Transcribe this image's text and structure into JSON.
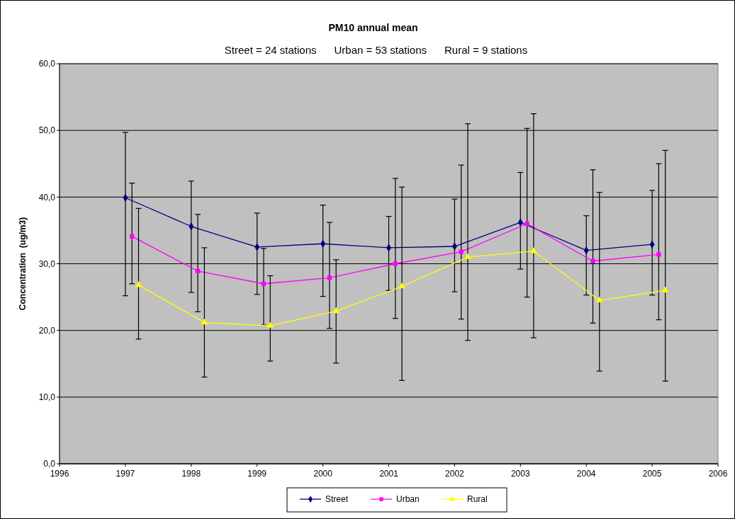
{
  "chart_data": {
    "type": "line",
    "title": "PM10 annual mean",
    "subtitle": "Street = 24 stations      Urban = 53 stations      Rural = 9 stations",
    "ylabel": "Concentration  (ug/m3)",
    "xlim": [
      1996,
      2006
    ],
    "xticks": [
      1996,
      1997,
      1998,
      1999,
      2000,
      2001,
      2002,
      2003,
      2004,
      2005,
      2006
    ],
    "ylim": [
      0,
      60
    ],
    "yticks": [
      {
        "value": 0,
        "label": "0,0"
      },
      {
        "value": 10,
        "label": "10,0"
      },
      {
        "value": 20,
        "label": "20,0"
      },
      {
        "value": 30,
        "label": "30,0"
      },
      {
        "value": 40,
        "label": "40,0"
      },
      {
        "value": 50,
        "label": "50,0"
      },
      {
        "value": 60,
        "label": "60,0"
      }
    ],
    "grid": "y",
    "legend": "bottom",
    "line_style": "solid",
    "series": [
      {
        "name": "Street",
        "color": "#000080",
        "marker": "diamond",
        "x": [
          1997,
          1998,
          1999,
          2000,
          2001,
          2002,
          2003,
          2004,
          2005
        ],
        "values": [
          39.9,
          35.6,
          32.5,
          33.0,
          32.4,
          32.6,
          36.2,
          32.0,
          32.9
        ],
        "errors": [
          [
            25.2,
            49.7
          ],
          [
            25.7,
            42.4
          ],
          [
            25.4,
            37.6
          ],
          [
            25.1,
            38.8
          ],
          [
            26.0,
            37.1
          ],
          [
            25.8,
            39.7
          ],
          [
            29.2,
            43.7
          ],
          [
            25.3,
            37.2
          ],
          [
            25.3,
            41.0
          ]
        ]
      },
      {
        "name": "Urban",
        "color": "#ff00ff",
        "marker": "square",
        "x": [
          1997.1,
          1998.1,
          1999.1,
          2000.1,
          2001.1,
          2002.1,
          2003.1,
          2004.1,
          2005.1
        ],
        "values": [
          34.1,
          28.9,
          27.0,
          27.9,
          30.0,
          31.8,
          36.0,
          30.4,
          31.4
        ],
        "errors": [
          [
            27.0,
            42.1
          ],
          [
            22.8,
            37.4
          ],
          [
            20.8,
            32.3
          ],
          [
            20.3,
            36.2
          ],
          [
            21.8,
            42.8
          ],
          [
            21.7,
            44.8
          ],
          [
            25.0,
            50.3
          ],
          [
            21.1,
            44.1
          ],
          [
            21.6,
            45.0
          ]
        ]
      },
      {
        "name": "Rural",
        "color": "#ffff00",
        "marker": "triangle",
        "x": [
          1997.2,
          1998.2,
          1999.2,
          2000.2,
          2001.2,
          2002.2,
          2003.2,
          2004.2,
          2005.2
        ],
        "values": [
          26.8,
          21.2,
          20.7,
          22.9,
          26.6,
          31.0,
          31.9,
          24.5,
          26.0
        ],
        "errors": [
          [
            18.7,
            38.3
          ],
          [
            13.0,
            32.4
          ],
          [
            15.4,
            28.2
          ],
          [
            15.1,
            30.6
          ],
          [
            12.5,
            41.5
          ],
          [
            18.5,
            51.0
          ],
          [
            18.9,
            52.5
          ],
          [
            13.9,
            40.7
          ],
          [
            12.4,
            47.0
          ]
        ]
      }
    ]
  }
}
